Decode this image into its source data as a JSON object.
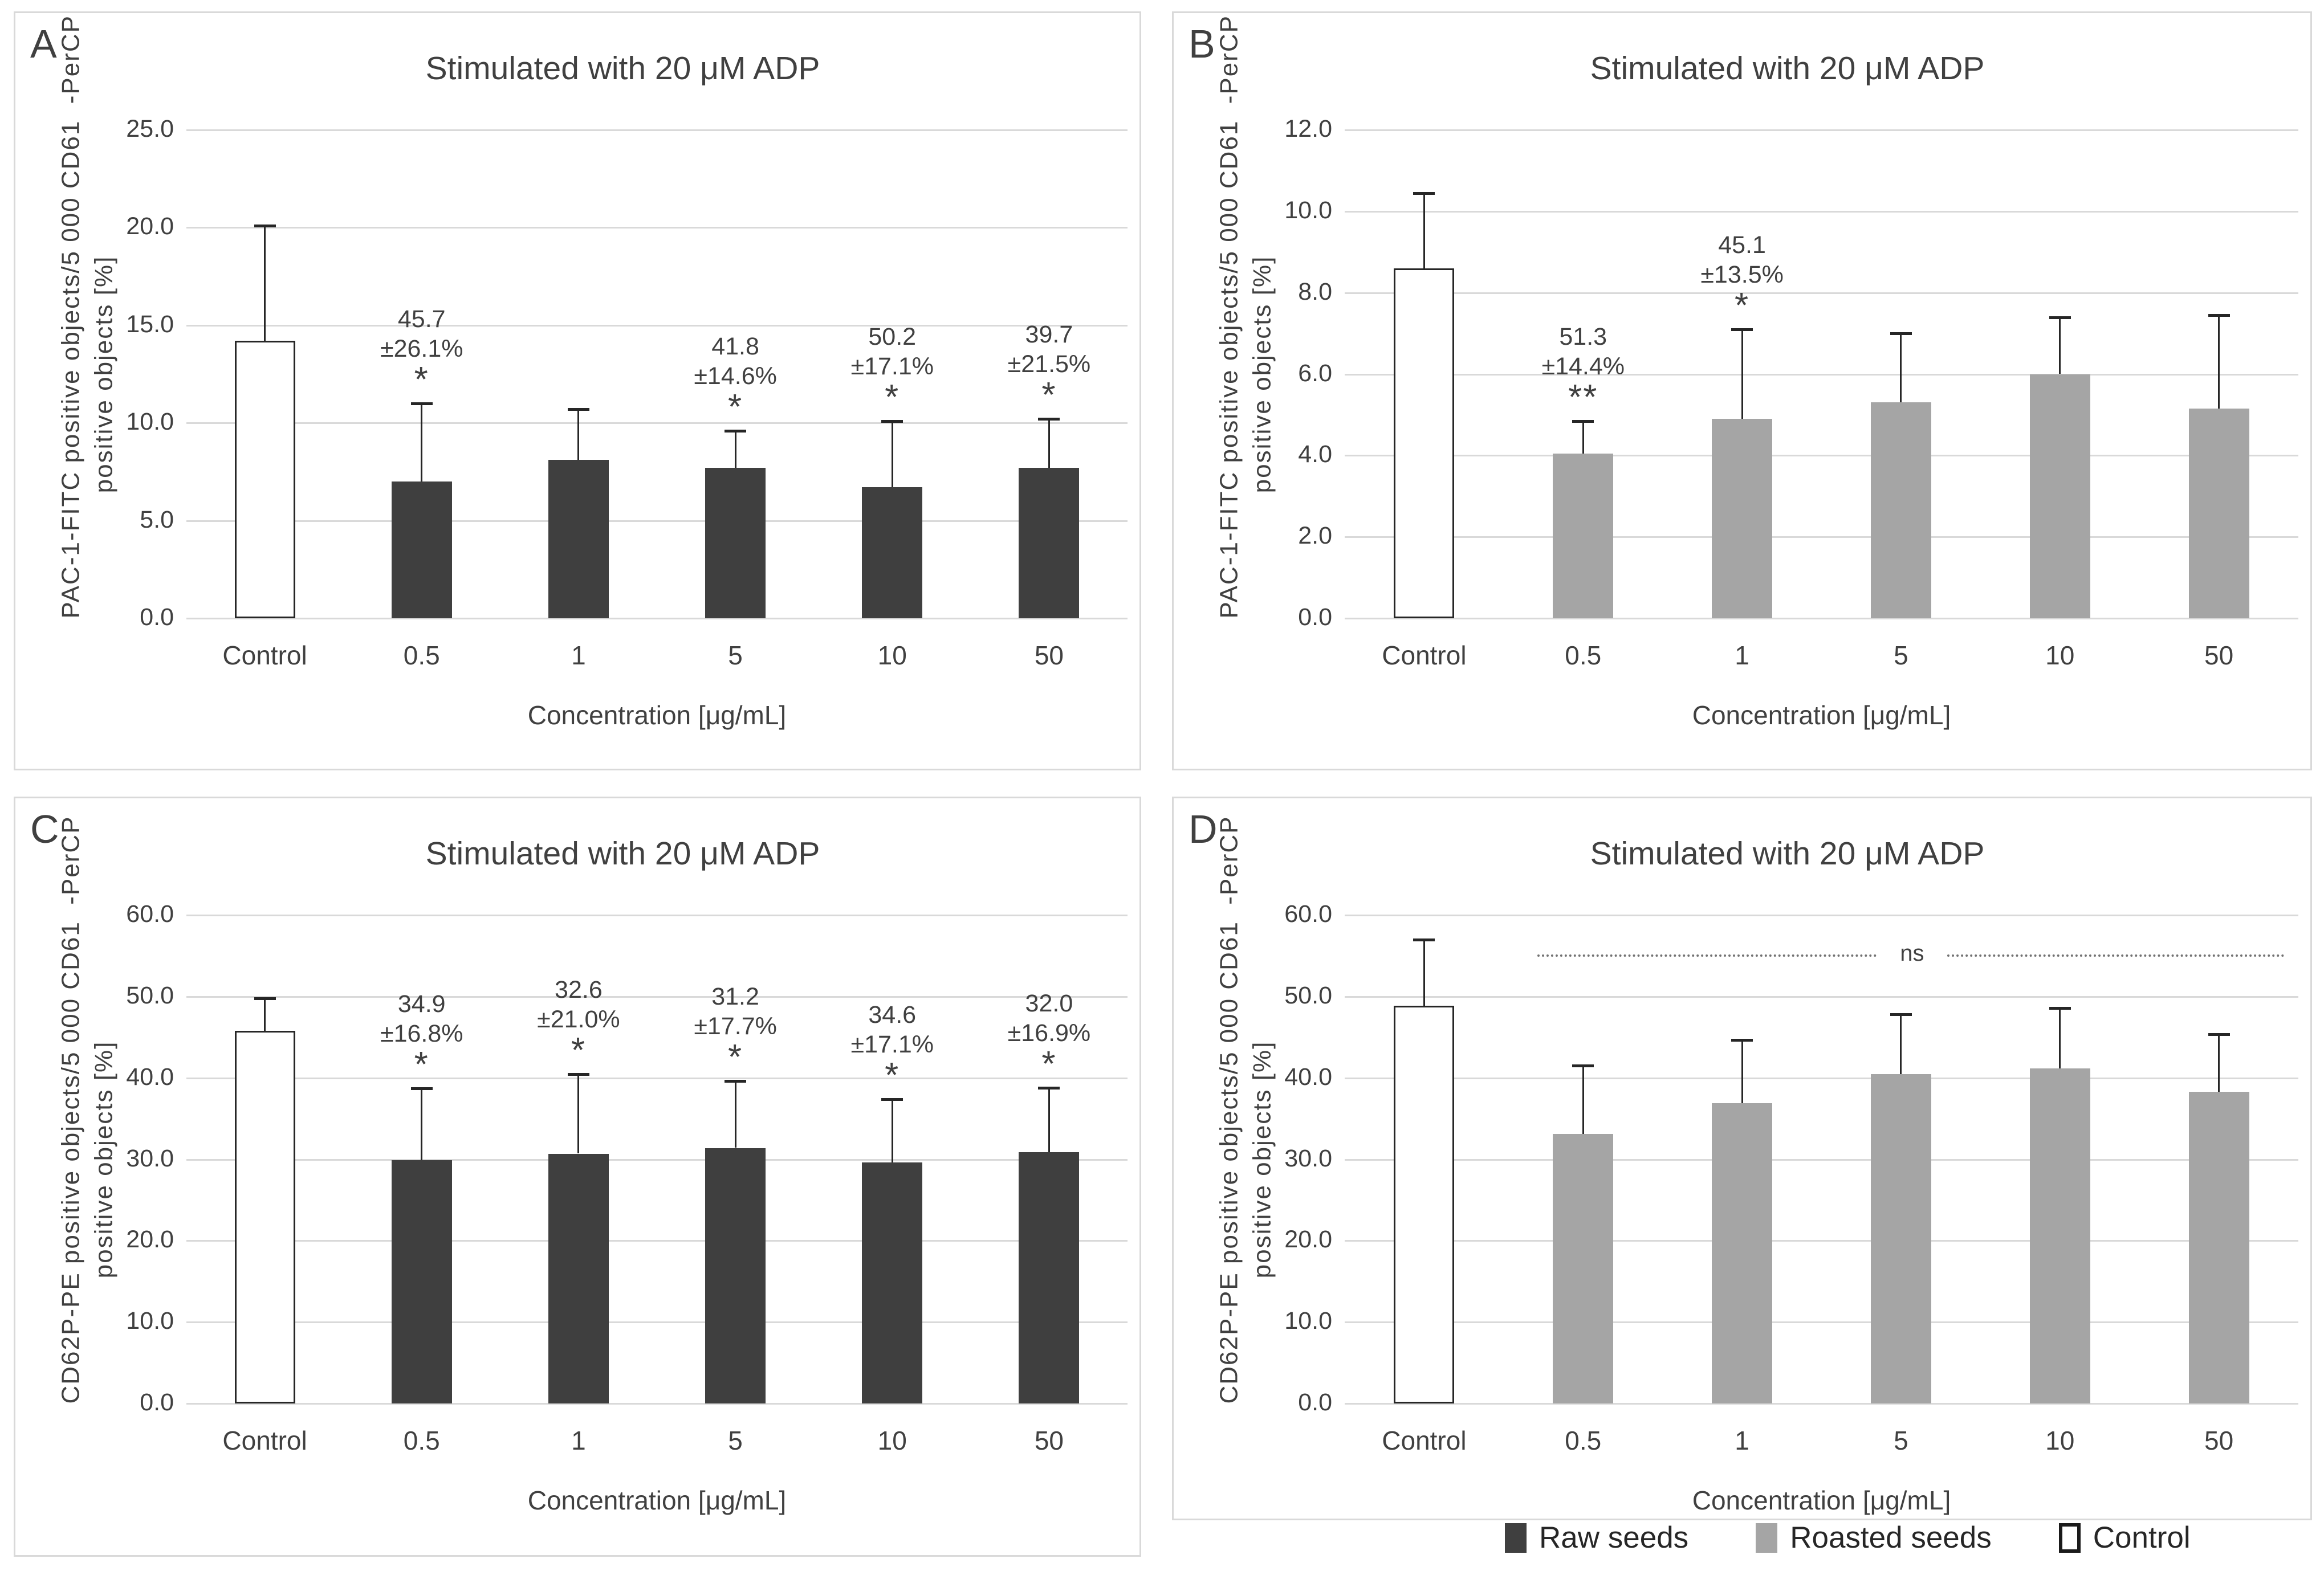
{
  "figure": {
    "background": "#ffffff"
  },
  "colors": {
    "raw": "#3f3f3f",
    "roasted": "#a5a5a5",
    "control_fill": "#ffffff",
    "control_border": "#262626",
    "grid": "#d9d9d9",
    "text": "#404040",
    "error_bar": "#262626",
    "panel_border": "#d9d9d9",
    "ns_line": "#737373"
  },
  "legend": {
    "items": [
      {
        "label": "Raw seeds",
        "color": "#3f3f3f"
      },
      {
        "label": "Roasted seeds",
        "color": "#a5a5a5"
      },
      {
        "label": "Control",
        "color": "#ffffff",
        "border": "#1a1a1a"
      }
    ]
  },
  "chart_data": [
    {
      "type": "bar",
      "panel_label": "A",
      "title": "Stimulated with 20 μM ADP",
      "ylabel_lines": [
        "PAC-1-FITC positive objects/5 000 CD61  -PerCP",
        "positive objects [%]"
      ],
      "xlabel": "Concentration [μg/mL]",
      "ylim": [
        0,
        25.0
      ],
      "ytick_step": 5.0,
      "grid": true,
      "legend_position": "none",
      "categories": [
        "Control",
        "0.5",
        "1",
        "5",
        "10",
        "50"
      ],
      "series_role": [
        "control",
        "raw",
        "raw",
        "raw",
        "raw",
        "raw"
      ],
      "values": [
        14.2,
        7.0,
        8.1,
        7.7,
        6.7,
        7.7
      ],
      "error_top": [
        20.1,
        11.0,
        10.7,
        9.6,
        10.1,
        10.2
      ],
      "annotations": [
        null,
        {
          "value": "45.7",
          "pm": "±26.1%",
          "stars": "*"
        },
        null,
        {
          "value": "41.8",
          "pm": "±14.6%",
          "stars": "*"
        },
        {
          "value": "50.2",
          "pm": "±17.1%",
          "stars": "*"
        },
        {
          "value": "39.7",
          "pm": "±21.5%",
          "stars": "*"
        }
      ]
    },
    {
      "type": "bar",
      "panel_label": "B",
      "title": "Stimulated with 20 μM ADP",
      "ylabel_lines": [
        "PAC-1-FITC positive objects/5 000 CD61  -PerCP",
        "positive objects [%]"
      ],
      "xlabel": "Concentration [μg/mL]",
      "ylim": [
        0,
        12.0
      ],
      "ytick_step": 2.0,
      "grid": true,
      "legend_position": "none",
      "categories": [
        "Control",
        "0.5",
        "1",
        "5",
        "10",
        "50"
      ],
      "series_role": [
        "control",
        "roasted",
        "roasted",
        "roasted",
        "roasted",
        "roasted"
      ],
      "values": [
        8.6,
        4.05,
        4.9,
        5.3,
        6.0,
        5.15
      ],
      "error_top": [
        10.45,
        4.85,
        7.1,
        7.0,
        7.4,
        7.45
      ],
      "annotations": [
        null,
        {
          "value": "51.3",
          "pm": "±14.4%",
          "stars": "**"
        },
        {
          "value": "45.1",
          "pm": "±13.5%",
          "stars": "*"
        },
        null,
        null,
        null
      ]
    },
    {
      "type": "bar",
      "panel_label": "C",
      "title": "Stimulated with 20 μM ADP",
      "ylabel_lines": [
        "CD62P-PE positive objects/5 000 CD61  -PerCP",
        "positive objects [%]"
      ],
      "xlabel": "Concentration [μg/mL]",
      "ylim": [
        0,
        60.0
      ],
      "ytick_step": 10.0,
      "grid": true,
      "legend_position": "none",
      "categories": [
        "Control",
        "0.5",
        "1",
        "5",
        "10",
        "50"
      ],
      "series_role": [
        "control",
        "raw",
        "raw",
        "raw",
        "raw",
        "raw"
      ],
      "values": [
        45.8,
        29.9,
        30.7,
        31.4,
        29.6,
        30.9
      ],
      "error_top": [
        49.8,
        38.7,
        40.5,
        39.6,
        37.4,
        38.8
      ],
      "annotations": [
        null,
        {
          "value": "34.9",
          "pm": "±16.8%",
          "stars": "*"
        },
        {
          "value": "32.6",
          "pm": "±21.0%",
          "stars": "*"
        },
        {
          "value": "31.2",
          "pm": "±17.7%",
          "stars": "*"
        },
        {
          "value": "34.6",
          "pm": "±17.1%",
          "stars": "*"
        },
        {
          "value": "32.0",
          "pm": "±16.9%",
          "stars": "*"
        }
      ]
    },
    {
      "type": "bar",
      "panel_label": "D",
      "title": "Stimulated with 20 μM ADP",
      "ylabel_lines": [
        "CD62P-PE positive objects/5 000 CD61  -PerCP",
        "positive objects [%]"
      ],
      "xlabel": "Concentration [μg/mL]",
      "ylim": [
        0,
        60.0
      ],
      "ytick_step": 10.0,
      "grid": true,
      "legend_position": "none",
      "categories": [
        "Control",
        "0.5",
        "1",
        "5",
        "10",
        "50"
      ],
      "series_role": [
        "control",
        "roasted",
        "roasted",
        "roasted",
        "roasted",
        "roasted"
      ],
      "values": [
        48.9,
        33.1,
        36.9,
        40.5,
        41.2,
        38.3
      ],
      "error_top": [
        57.0,
        41.5,
        44.7,
        47.8,
        48.6,
        45.4
      ],
      "annotations": [
        null,
        null,
        null,
        null,
        null,
        null
      ],
      "ns_annotation": {
        "y": 55.2,
        "label": "ns"
      }
    }
  ]
}
